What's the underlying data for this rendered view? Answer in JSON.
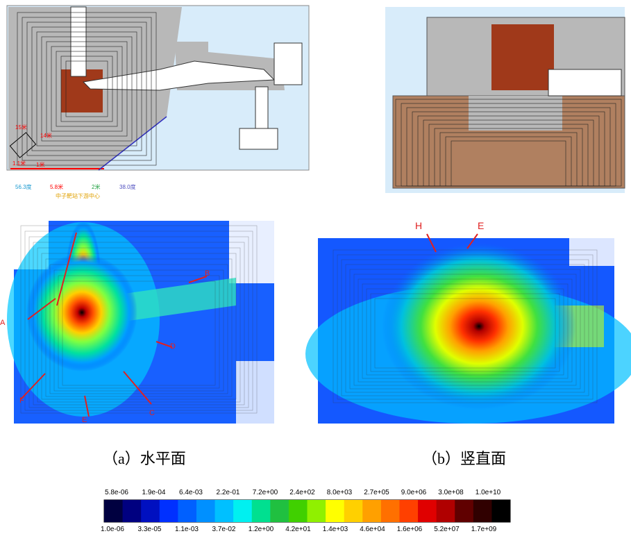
{
  "layout_diagram": {
    "labels": [
      "15米",
      "14米",
      "1.1米",
      "1米",
      "56.3度",
      "5.8米",
      "2米",
      "38.0度",
      "中子靶站下游中心"
    ]
  },
  "heatmap_a": {
    "labels": [
      "A",
      "B",
      "C",
      "D",
      "E",
      "F"
    ]
  },
  "heatmap_b": {
    "labels": [
      "H",
      "E"
    ]
  },
  "captions": [
    "（a）水平面",
    "（b）竖直面"
  ],
  "colorbar": {
    "upper_labels": [
      "5.8e-06",
      "1.9e-04",
      "6.4e-03",
      "2.2e-01",
      "7.2e+00",
      "2.4e+02",
      "8.0e+03",
      "2.7e+05",
      "9.0e+06",
      "3.0e+08",
      "1.0e+10"
    ],
    "lower_labels": [
      "1.0e-06",
      "3.3e-05",
      "1.1e-03",
      "3.7e-02",
      "1.2e+00",
      "4.2e+01",
      "1.4e+03",
      "4.6e+04",
      "1.6e+06",
      "5.2e+07",
      "1.7e+09"
    ]
  }
}
